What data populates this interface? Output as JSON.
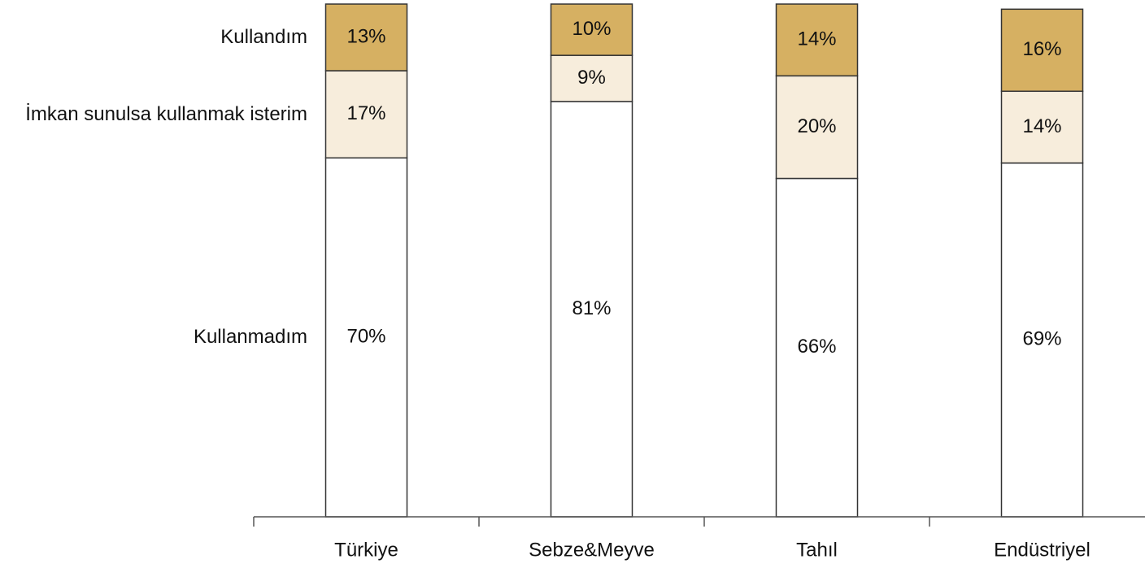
{
  "chart_data": {
    "type": "stacked_bar",
    "categories": [
      "Türkiye",
      "Sebze&Meyve",
      "Tahıl",
      "Endüstriyel"
    ],
    "series": [
      {
        "name": "Kullanmadım",
        "color": "#ffffff",
        "values": [
          70,
          81,
          66,
          69
        ],
        "value_labels": [
          "70%",
          "81%",
          "66%",
          "69%"
        ]
      },
      {
        "name": "İmkan sunulsa kullanmak isterim",
        "color": "#f7eddc",
        "values": [
          17,
          9,
          20,
          14
        ],
        "value_labels": [
          "17%",
          "9%",
          "20%",
          "14%"
        ]
      },
      {
        "name": "Kullandım",
        "color": "#d6b062",
        "values": [
          13,
          10,
          14,
          16
        ],
        "value_labels": [
          "13%",
          "10%",
          "14%",
          "16%"
        ]
      }
    ],
    "ylim": [
      0,
      100
    ]
  }
}
